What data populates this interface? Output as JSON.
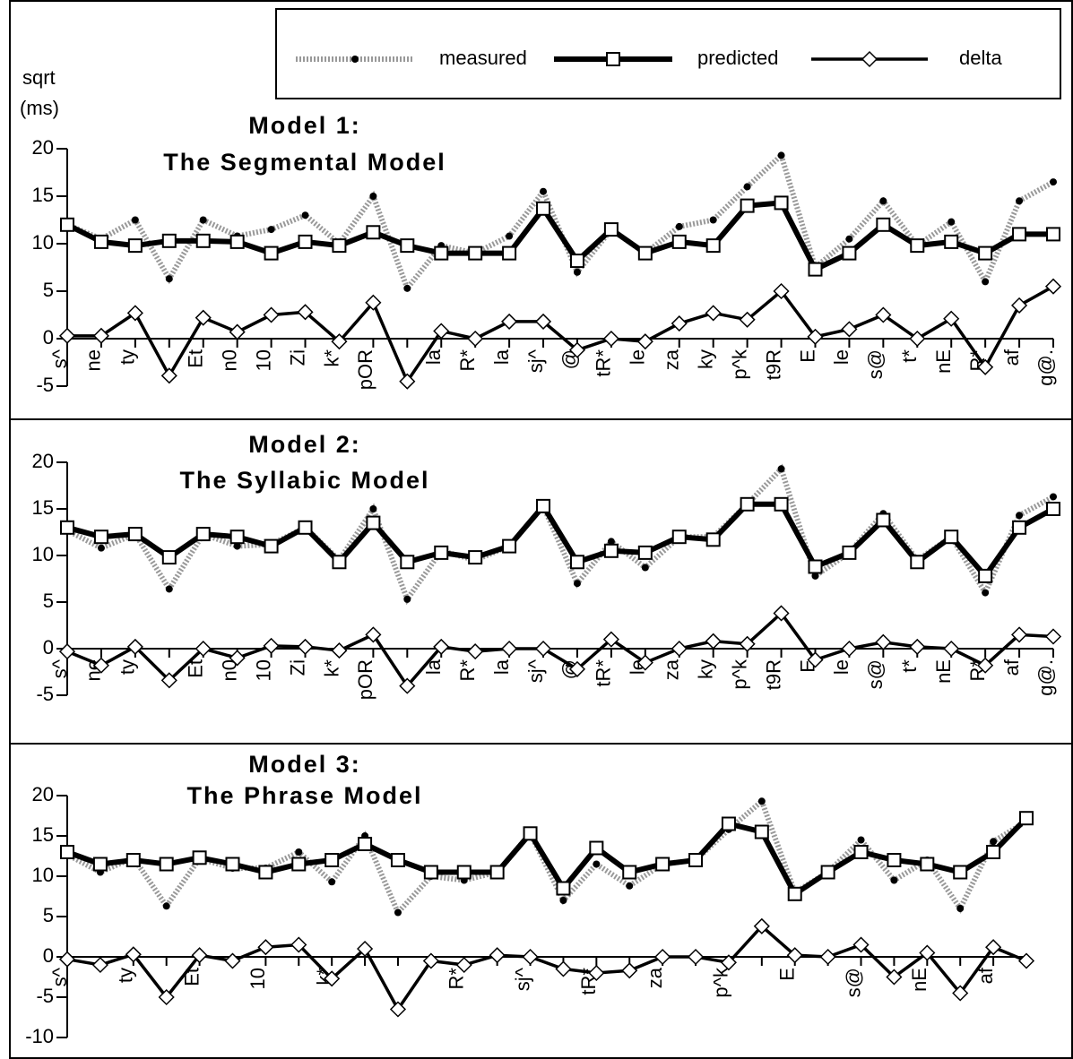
{
  "chart_data": [
    {
      "type": "line",
      "title": [
        "Model 1:",
        "The Segmental Model"
      ],
      "ylabel": [
        "sqrt",
        "(ms)"
      ],
      "categories": [
        "s^",
        "ne",
        "ty",
        null,
        "Et",
        "n0",
        "10",
        "Zi",
        "k*",
        "pOR",
        null,
        "la",
        "R*",
        "la",
        "sj^",
        "@",
        "tR*",
        "le",
        "za",
        "ky",
        "p^k",
        "t9R",
        "E",
        "le",
        "s@",
        "t*",
        "nE",
        "R*",
        "af",
        "g@."
      ],
      "ylim": [
        -5,
        20
      ],
      "yticks": [
        -5,
        0,
        5,
        10,
        15,
        20
      ],
      "series": [
        {
          "name": "measured",
          "color": "#999999",
          "values": [
            12,
            10.5,
            12.5,
            6.3,
            12.5,
            10.8,
            11.5,
            13,
            10,
            15,
            5.3,
            9.8,
            9,
            10.8,
            15.5,
            7,
            11.5,
            9,
            11.8,
            12.5,
            16,
            19.3,
            7.5,
            10.5,
            14.5,
            9.8,
            12.3,
            6,
            14.5,
            16.5
          ]
        },
        {
          "name": "predicted",
          "color": "#000000",
          "values": [
            12,
            10.2,
            9.8,
            10.3,
            10.3,
            10.2,
            9,
            10.2,
            9.8,
            11.2,
            9.8,
            9,
            9,
            9,
            13.7,
            8.2,
            11.5,
            9,
            10.2,
            9.8,
            14,
            14.3,
            7.3,
            9,
            12,
            9.8,
            10.2,
            9,
            11,
            11
          ]
        },
        {
          "name": "delta",
          "color": "#000000",
          "values": [
            0.3,
            0.3,
            2.7,
            -3.9,
            2.2,
            0.7,
            2.5,
            2.8,
            -0.3,
            3.8,
            -4.5,
            0.8,
            0,
            1.8,
            1.8,
            -1.2,
            0,
            -0.3,
            1.6,
            2.7,
            2,
            5,
            0.2,
            1,
            2.5,
            0,
            2.1,
            -3,
            3.5,
            5.5
          ]
        }
      ]
    },
    {
      "type": "line",
      "title": [
        "Model 2:",
        "The Syllabic Model"
      ],
      "categories": [
        "s^",
        "ne",
        "ty",
        null,
        "Et",
        "n0",
        "10",
        "Zi",
        "k*",
        "pOR",
        null,
        "la",
        "R*",
        "la",
        "sj^",
        "@",
        "tR*",
        "le",
        "za",
        "ky",
        "p^k",
        "t9R",
        "E",
        "le",
        "s@",
        "t*",
        "nE",
        "R*",
        "af",
        "g@."
      ],
      "ylim": [
        -5,
        20
      ],
      "yticks": [
        -5,
        0,
        5,
        10,
        15,
        20
      ],
      "series": [
        {
          "name": "measured",
          "color": "#999999",
          "values": [
            12.7,
            10.8,
            12.3,
            6.4,
            12.3,
            11,
            11.2,
            13,
            9.5,
            15,
            5.3,
            10.5,
            9.5,
            11,
            15.3,
            7,
            11.5,
            8.7,
            12,
            12,
            15.5,
            19.3,
            7.8,
            10.3,
            14.5,
            9.5,
            12,
            6,
            14.3,
            16.3
          ]
        },
        {
          "name": "predicted",
          "color": "#000000",
          "values": [
            13,
            12,
            12.3,
            9.8,
            12.3,
            12,
            11,
            13,
            9.3,
            13.5,
            9.3,
            10.3,
            9.8,
            11,
            15.3,
            9.3,
            10.5,
            10.3,
            12,
            11.7,
            15.5,
            15.5,
            8.8,
            10.3,
            13.8,
            9.3,
            12,
            7.8,
            13,
            15
          ]
        },
        {
          "name": "delta",
          "color": "#000000",
          "values": [
            -0.3,
            -1.8,
            0.2,
            -3.4,
            0,
            -1,
            0.3,
            0.2,
            -0.2,
            1.5,
            -4,
            0.2,
            -0.3,
            0,
            0,
            -2.2,
            1,
            -1.5,
            0,
            0.8,
            0.5,
            3.8,
            -1.2,
            0,
            0.7,
            0.2,
            0,
            -1.8,
            1.5,
            1.3
          ]
        }
      ]
    },
    {
      "type": "line",
      "title": [
        "Model 3:",
        "The Phrase Model"
      ],
      "categories": [
        "s^",
        null,
        "ty",
        null,
        "Et",
        null,
        "10",
        null,
        "k*",
        null,
        null,
        null,
        "R*",
        null,
        "sj^",
        null,
        "tR*",
        null,
        "za",
        null,
        "p^k",
        null,
        "E",
        null,
        "s@",
        null,
        "nE",
        null,
        "af",
        null
      ],
      "ylim": [
        -10,
        20
      ],
      "yticks": [
        -10,
        -5,
        0,
        5,
        10,
        15,
        20
      ],
      "series": [
        {
          "name": "measured",
          "color": "#999999",
          "values": [
            12.7,
            10.5,
            12.3,
            6.3,
            12.2,
            11,
            11,
            13,
            9.3,
            15,
            5.5,
            10,
            9.5,
            10.5,
            15.3,
            7,
            11.5,
            8.8,
            11.5,
            12,
            15.8,
            19.3,
            8,
            10.5,
            14.5,
            9.5,
            12,
            6,
            14.3,
            16.8
          ]
        },
        {
          "name": "predicted",
          "color": "#000000",
          "values": [
            13,
            11.5,
            12,
            11.5,
            12.3,
            11.5,
            10.5,
            11.5,
            12,
            14,
            12,
            10.5,
            10.5,
            10.5,
            15.3,
            8.5,
            13.5,
            10.5,
            11.5,
            12,
            16.5,
            15.5,
            7.8,
            10.5,
            13,
            12,
            11.5,
            10.5,
            13,
            17.2
          ]
        },
        {
          "name": "delta",
          "color": "#000000",
          "values": [
            -0.3,
            -1,
            0.3,
            -5,
            0.2,
            -0.5,
            1.2,
            1.5,
            -2.7,
            1,
            -6.5,
            -0.5,
            -1,
            0.2,
            0,
            -1.5,
            -2,
            -1.7,
            0,
            0,
            -0.7,
            3.8,
            0.2,
            0,
            1.5,
            -2.5,
            0.5,
            -4.5,
            1.2,
            -0.5
          ]
        }
      ]
    }
  ]
}
